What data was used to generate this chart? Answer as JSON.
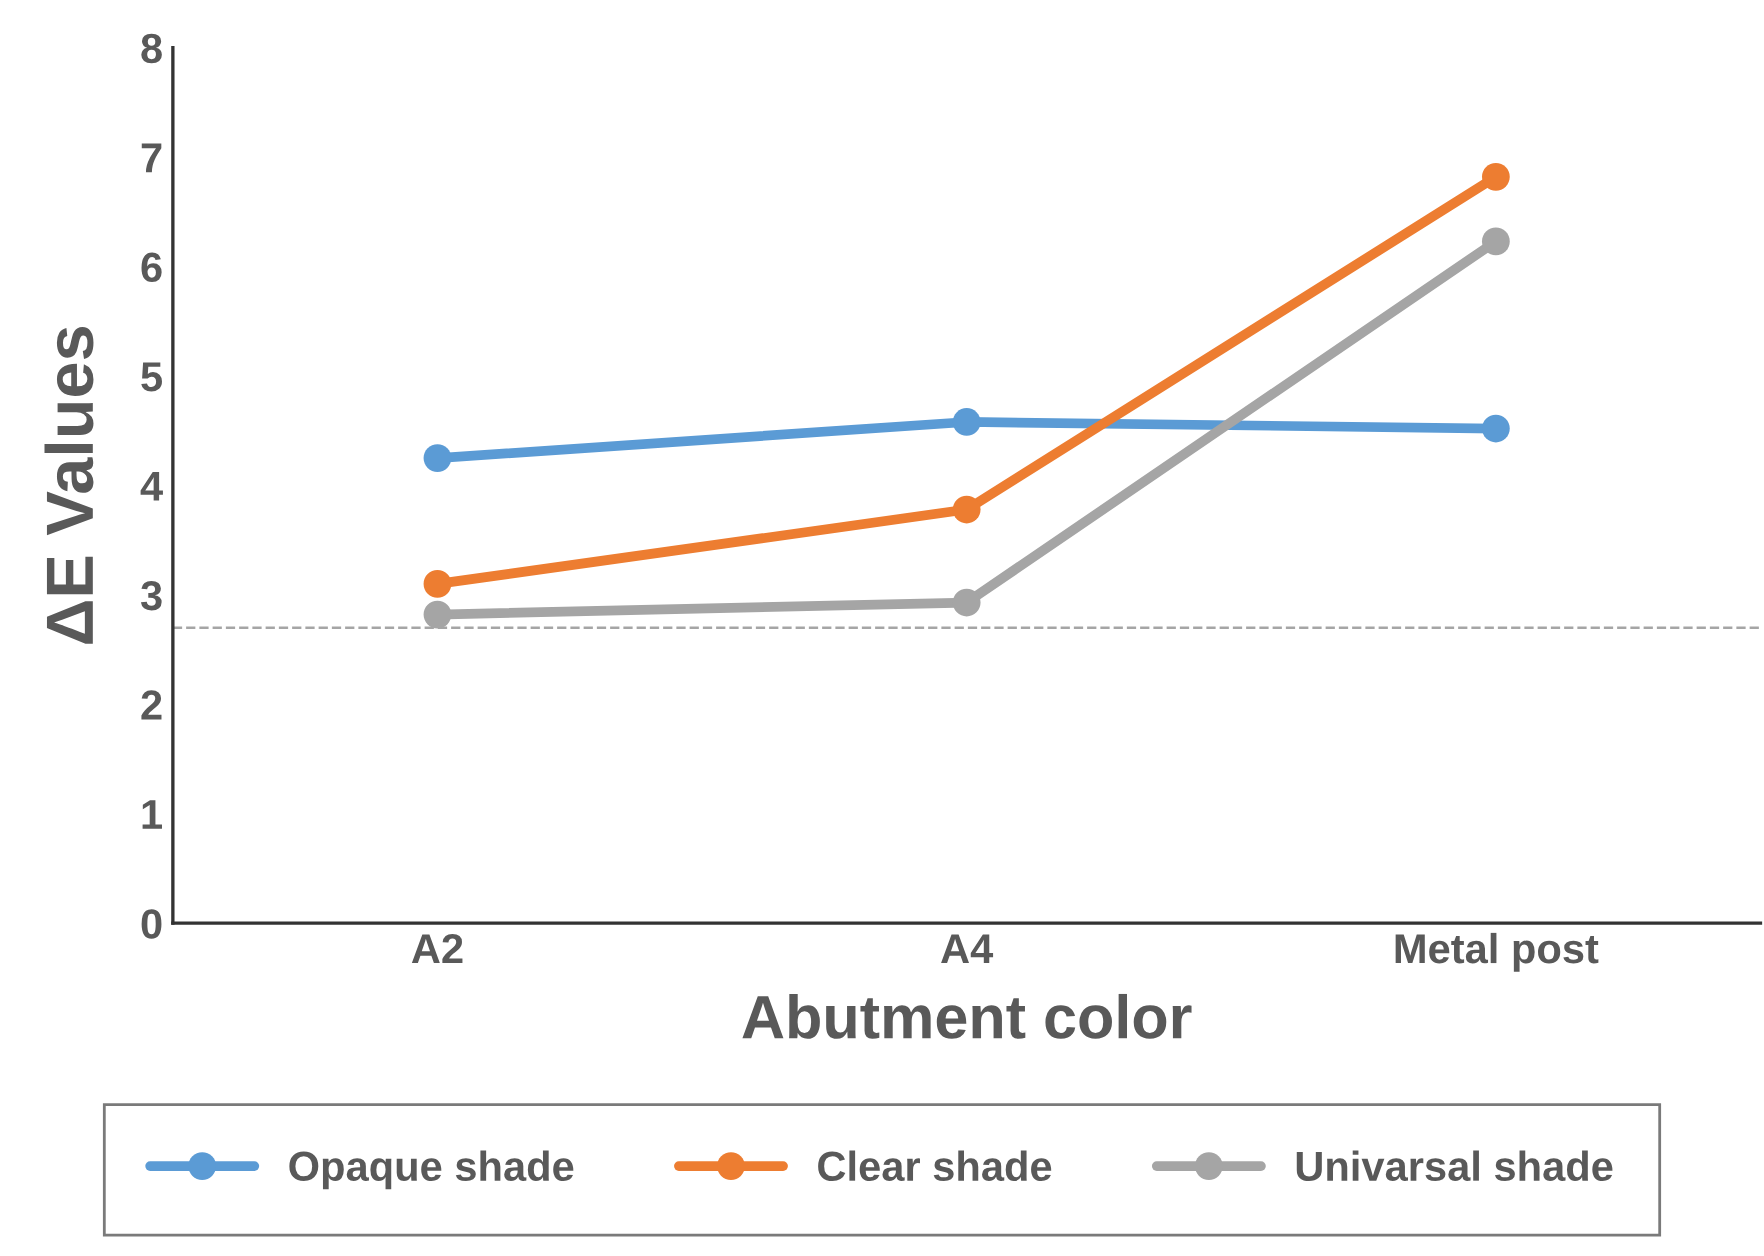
{
  "chart_data": {
    "type": "line",
    "xlabel": "Abutment color",
    "ylabel": "ΔE Values",
    "categories": [
      "A2",
      "A4",
      "Metal post"
    ],
    "series": [
      {
        "name": "Opaque shade",
        "color": "#5b9bd5",
        "values": [
          4.25,
          4.58,
          4.52
        ]
      },
      {
        "name": "Clear shade",
        "color": "#ed7d31",
        "values": [
          3.1,
          3.78,
          6.82
        ]
      },
      {
        "name": "Univarsal shade",
        "color": "#a5a5a5",
        "values": [
          2.82,
          2.93,
          6.23
        ]
      }
    ],
    "ylim": [
      0,
      8
    ],
    "yticks": [
      0,
      1,
      2,
      3,
      4,
      5,
      6,
      7,
      8
    ],
    "ref_lines": [
      {
        "axis": "y",
        "value": 2.7,
        "label": null,
        "color": "#a5a5a5",
        "line_style": "dashed"
      }
    ],
    "marker": "circle",
    "line_style": "solid",
    "grid": false,
    "legend": "bottom"
  }
}
